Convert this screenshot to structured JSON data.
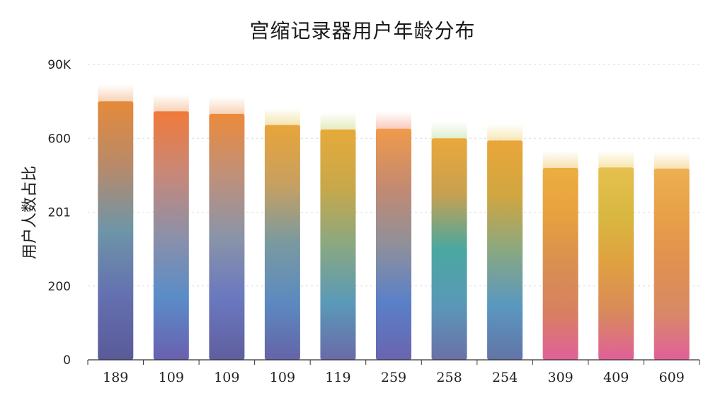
{
  "chart_data": {
    "type": "bar",
    "title": "宫缩记录器用户年龄分布",
    "xlabel": "",
    "ylabel": "用户人数占比",
    "y_tick_labels": [
      "0",
      "200",
      "201",
      "600",
      "90K"
    ],
    "ylim": [
      0,
      800
    ],
    "grid": true,
    "categories": [
      "189",
      "109",
      "109",
      "109",
      "119",
      "259",
      "258",
      "254",
      "309",
      "409",
      "609"
    ],
    "values": [
      700,
      673,
      666,
      636,
      624,
      626,
      600,
      594,
      520,
      521,
      518
    ],
    "colors": {
      "top_glow": [
        "#f7c9a8",
        "#f7c9a8",
        "#f7c9a8",
        "#f2e0a0",
        "#dfe8b0",
        "#f7c0b0",
        "#d8ecc8",
        "#f5e4a8",
        "#f7dca0",
        "#f7e2a0",
        "#f7dca0"
      ],
      "bar_stops": [
        [
          "#e58a3a",
          "#b88a6a",
          "#6e95a8",
          "#6470b0",
          "#5a5a98"
        ],
        [
          "#f07a3a",
          "#c88878",
          "#8c90a8",
          "#5a8cc8",
          "#6a60b0"
        ],
        [
          "#ec8a3a",
          "#c0907a",
          "#8a94a8",
          "#6a78c0",
          "#5f5e9e"
        ],
        [
          "#e8a43a",
          "#c8a060",
          "#7a9aa0",
          "#5c8ac0",
          "#6464a8"
        ],
        [
          "#e6aa3a",
          "#c8a84a",
          "#8aa880",
          "#5a9ab8",
          "#6a6aa8"
        ],
        [
          "#f09a4a",
          "#c48a70",
          "#90909a",
          "#5a80c8",
          "#6a64b0"
        ],
        [
          "#eaa83a",
          "#c8a050",
          "#4aa8a0",
          "#5a98b8",
          "#6a70a8"
        ],
        [
          "#eaa63a",
          "#d0a640",
          "#8aa880",
          "#5a98c0",
          "#6274a8"
        ],
        [
          "#ecae40",
          "#e8a040",
          "#d89050",
          "#d88060",
          "#e0609a"
        ],
        [
          "#e6c050",
          "#d8b840",
          "#e0a040",
          "#d88a5a",
          "#e0609a"
        ],
        [
          "#ecb050",
          "#e8a048",
          "#e09050",
          "#d88a66",
          "#e0609a"
        ]
      ]
    }
  }
}
